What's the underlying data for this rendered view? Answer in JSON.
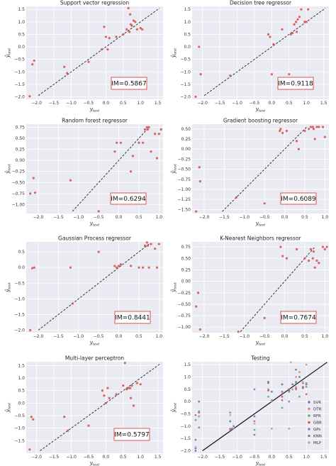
{
  "chart_data": [
    {
      "type": "scatter",
      "title": "Support vector regression",
      "xlabel": "y_test",
      "ylabel": "ŷ_test",
      "xlim": [
        -2.3,
        1.65
      ],
      "ylim": [
        -2.1,
        1.62
      ],
      "xticks": [
        -2.0,
        -1.5,
        -1.0,
        -0.5,
        0.0,
        0.5,
        1.0,
        1.5
      ],
      "xtick_labels": [
        "−2.0",
        "−1.5",
        "−1.0",
        "−0.5",
        "0.0",
        "0.5",
        "1.0",
        "1.5"
      ],
      "yticks": [
        -2.0,
        -1.5,
        -1.0,
        -0.5,
        0.0,
        0.5,
        1.0,
        1.5
      ],
      "ytick_labels": [
        "−2.0",
        "−1.5",
        "−1.0",
        "−0.5",
        "0.0",
        "0.5",
        "1.0",
        "1.5"
      ],
      "diagonal": [
        -1.95,
        1.55
      ],
      "annotation": "IM=0.5867",
      "grid": true,
      "points": {
        "x": [
          -2.2,
          -2.12,
          -2.07,
          -1.2,
          -1.12,
          -0.5,
          -0.12,
          -0.05,
          0.0,
          0.05,
          0.1,
          0.3,
          0.5,
          0.6,
          0.65,
          0.68,
          0.7,
          0.72,
          0.75,
          0.8,
          0.85,
          0.9,
          1.0,
          1.05
        ],
        "y": [
          -1.98,
          -0.7,
          -0.55,
          -0.8,
          -1.05,
          -0.6,
          -0.1,
          0.8,
          0.4,
          -0.1,
          0.35,
          0.4,
          0.5,
          0.7,
          1.55,
          0.6,
          1.3,
          0.9,
          0.85,
          1.05,
          1.0,
          0.7,
          0.75,
          0.7
        ]
      }
    },
    {
      "type": "scatter",
      "title": "Decision tree regressor",
      "xlabel": "y_test",
      "ylabel": "ŷ_test",
      "xlim": [
        -2.3,
        1.65
      ],
      "ylim": [
        -2.1,
        1.62
      ],
      "xticks": [
        -2.0,
        -1.5,
        -1.0,
        -0.5,
        0.0,
        0.5,
        1.0,
        1.5
      ],
      "xtick_labels": [
        "−2.0",
        "−1.5",
        "−1.0",
        "−0.5",
        "0.0",
        "0.5",
        "1.0",
        "1.5"
      ],
      "yticks": [
        -2.0,
        -1.5,
        -1.0,
        -0.5,
        0.0,
        0.5,
        1.0,
        1.5
      ],
      "ytick_labels": [
        "−2.0",
        "−1.5",
        "−1.0",
        "−0.5",
        "0.0",
        "0.5",
        "1.0",
        "1.5"
      ],
      "diagonal": [
        -1.95,
        1.55
      ],
      "annotation": "IM=0.9118",
      "grid": true,
      "points": {
        "x": [
          -2.2,
          -2.1,
          -2.05,
          -1.2,
          -0.1,
          -0.05,
          0.0,
          0.05,
          0.3,
          0.5,
          0.55,
          0.6,
          0.65,
          0.7,
          0.72,
          0.75,
          0.8,
          0.85,
          0.95,
          1.0,
          1.05
        ],
        "y": [
          -2.0,
          0.0,
          -1.1,
          -1.15,
          0.5,
          0.4,
          -1.1,
          0.1,
          0.7,
          -1.1,
          0.5,
          0.55,
          0.9,
          1.0,
          0.6,
          1.1,
          1.2,
          1.5,
          1.0,
          1.0,
          1.5
        ]
      }
    },
    {
      "type": "scatter",
      "title": "Random forest regressor",
      "xlabel": "y_test",
      "ylabel": "ŷ_test",
      "xlim": [
        -2.3,
        1.1
      ],
      "ylim": [
        -1.2,
        0.82
      ],
      "xticks": [
        -2.0,
        -1.5,
        -1.0,
        -0.5,
        0.0,
        0.5,
        1.0
      ],
      "xtick_labels": [
        "−2.0",
        "−1.5",
        "−1.0",
        "−0.5",
        "0.0",
        "0.5",
        "1.0"
      ],
      "yticks": [
        -1.0,
        -0.75,
        -0.5,
        -0.25,
        0.0,
        0.25,
        0.5,
        0.75
      ],
      "ytick_labels": [
        "−1.00",
        "−0.75",
        "−0.50",
        "−0.25",
        "0.00",
        "0.25",
        "0.50",
        "0.75"
      ],
      "diagonal": [
        -1.15,
        0.75
      ],
      "annotation": "IM=0.6294",
      "grid": true,
      "points": {
        "x": [
          -2.2,
          -2.12,
          -2.08,
          -1.2,
          -0.5,
          -0.1,
          -0.05,
          0.05,
          0.3,
          0.35,
          0.5,
          0.6,
          0.65,
          0.7,
          0.72,
          0.75,
          0.8,
          0.9,
          0.95,
          1.0,
          1.05
        ],
        "y": [
          -0.75,
          -0.4,
          -0.73,
          -0.45,
          -1.15,
          0.2,
          0.4,
          0.4,
          -0.25,
          0.1,
          0.4,
          0.4,
          0.7,
          0.75,
          0.7,
          0.75,
          0.2,
          0.6,
          0.05,
          0.6,
          0.7
        ]
      }
    },
    {
      "type": "scatter",
      "title": "Gradient boosting regressor",
      "xlabel": "y_test",
      "ylabel": "ŷ_test",
      "xlim": [
        -2.3,
        1.1
      ],
      "ylim": [
        -1.6,
        0.62
      ],
      "xticks": [
        -2.0,
        -1.5,
        -1.0,
        -0.5,
        0.0,
        0.5,
        1.0
      ],
      "xtick_labels": [
        "−2.0",
        "−1.5",
        "−1.0",
        "−0.5",
        "0.0",
        "0.5",
        "1.0"
      ],
      "yticks": [
        -1.5,
        -1.25,
        -1.0,
        -0.75,
        -0.5,
        -0.25,
        0.0,
        0.25,
        0.5
      ],
      "ytick_labels": [
        "−1.50",
        "−1.25",
        "−1.00",
        "−0.75",
        "−0.50",
        "−0.25",
        "0.00",
        "0.25",
        "0.50"
      ],
      "diagonal": [
        -1.55,
        0.55
      ],
      "annotation": "IM=0.6089",
      "grid": true,
      "points": {
        "x": [
          -2.2,
          -2.12,
          -2.1,
          -1.2,
          -0.5,
          -0.12,
          -0.1,
          -0.05,
          0.05,
          0.3,
          0.35,
          0.5,
          0.6,
          0.65,
          0.7,
          0.72,
          0.75,
          0.8,
          0.85,
          0.95,
          1.0
        ],
        "y": [
          -1.55,
          -0.45,
          -0.8,
          -1.2,
          -1.35,
          0.45,
          0.5,
          0.4,
          0.45,
          0.2,
          0.0,
          0.45,
          0.5,
          0.55,
          0.55,
          0.5,
          0.25,
          0.55,
          0.55,
          0.55,
          0.3
        ]
      }
    },
    {
      "type": "scatter",
      "title": "Gaussian Process regressor",
      "xlabel": "y_test",
      "ylabel": "ŷ_test",
      "xlim": [
        -2.3,
        1.1
      ],
      "ylim": [
        -2.08,
        0.82
      ],
      "xticks": [
        -2.0,
        -1.5,
        -1.0,
        -0.5,
        0.0,
        0.5,
        1.0
      ],
      "xtick_labels": [
        "−2.0",
        "−1.5",
        "−1.0",
        "−0.5",
        "0.0",
        "0.5",
        "1.0"
      ],
      "yticks": [
        -2.0,
        -1.5,
        -1.0,
        -0.5,
        0.0,
        0.5
      ],
      "ytick_labels": [
        "−2.0",
        "−1.5",
        "−1.0",
        "−0.5",
        "0.0",
        "0.5"
      ],
      "diagonal": [
        -2.0,
        0.75
      ],
      "annotation": "IM=0.8441",
      "grid": true,
      "points": {
        "x": [
          -2.2,
          -2.15,
          -2.1,
          -1.2,
          -1.15,
          -0.5,
          -0.1,
          -0.05,
          0.0,
          0.05,
          0.3,
          0.5,
          0.6,
          0.65,
          0.7,
          0.72,
          0.75,
          0.8,
          0.9,
          0.95,
          1.0
        ],
        "y": [
          -2.0,
          -0.02,
          0.0,
          0.0,
          -1.15,
          0.5,
          0.05,
          0.0,
          0.05,
          0.1,
          0.05,
          0.0,
          0.0,
          0.7,
          0.8,
          0.7,
          0.0,
          0.75,
          0.6,
          0.0,
          0.75
        ]
      }
    },
    {
      "type": "scatter",
      "title": "K-Nearest Neighbors regressor",
      "xlabel": "y_test",
      "ylabel": "ŷ_test",
      "xlim": [
        -2.3,
        1.1
      ],
      "ylim": [
        -1.12,
        0.86
      ],
      "xticks": [
        -2.0,
        -1.5,
        -1.0,
        -0.5,
        0.0,
        0.5,
        1.0
      ],
      "xtick_labels": [
        "−2.0",
        "−1.5",
        "−1.0",
        "−0.5",
        "0.0",
        "0.5",
        "1.0"
      ],
      "yticks": [
        -1.0,
        -0.75,
        -0.5,
        -0.25,
        0.0,
        0.25,
        0.5,
        0.75
      ],
      "ytick_labels": [
        "−1.00",
        "−0.75",
        "−0.50",
        "−0.25",
        "0.00",
        "0.25",
        "0.50",
        "0.75"
      ],
      "diagonal": [
        -1.1,
        0.75
      ],
      "annotation": "IM=0.7674",
      "grid": true,
      "points": {
        "x": [
          -2.2,
          -2.15,
          -2.1,
          -1.15,
          -0.5,
          -0.1,
          -0.05,
          0.05,
          0.3,
          0.5,
          0.6,
          0.65,
          0.7,
          0.72,
          0.75,
          0.8,
          0.85,
          0.95,
          1.0,
          1.05
        ],
        "y": [
          -0.55,
          -0.25,
          -1.05,
          -1.1,
          -0.8,
          0.75,
          0.55,
          0.5,
          0.7,
          0.5,
          0.45,
          0.7,
          0.5,
          0.65,
          0.3,
          0.45,
          0.4,
          0.75,
          0.7,
          0.75
        ]
      }
    },
    {
      "type": "scatter",
      "title": "Multi-layer perceptron",
      "xlabel": "y_test",
      "ylabel": "ŷ_test",
      "xlim": [
        -2.3,
        1.65
      ],
      "ylim": [
        -2.0,
        1.65
      ],
      "xticks": [
        -2.0,
        -1.5,
        -1.0,
        -0.5,
        0.0,
        0.5,
        1.0,
        1.5
      ],
      "xtick_labels": [
        "−2.0",
        "−1.5",
        "−1.0",
        "−0.5",
        "0.0",
        "0.5",
        "1.0",
        "1.5"
      ],
      "yticks": [
        -1.5,
        -1.0,
        -0.5,
        0.0,
        0.5,
        1.0,
        1.5
      ],
      "ytick_labels": [
        "−1.5",
        "−1.0",
        "−0.5",
        "0.0",
        "0.5",
        "1.0",
        "1.5"
      ],
      "diagonal": [
        -1.9,
        1.55
      ],
      "annotation": "IM=0.5797",
      "grid": true,
      "points": {
        "x": [
          -2.2,
          -2.15,
          -2.1,
          -1.2,
          -1.1,
          -0.5,
          -0.1,
          -0.05,
          0.0,
          0.05,
          0.1,
          0.3,
          0.5,
          0.55,
          0.6,
          0.65,
          0.7,
          0.72,
          0.75,
          0.8,
          0.9,
          1.0
        ],
        "y": [
          -1.85,
          -0.55,
          -0.65,
          -0.55,
          -1.1,
          -0.9,
          0.5,
          0.3,
          0.0,
          0.6,
          0.2,
          0.35,
          0.7,
          1.6,
          0.55,
          0.6,
          0.6,
          0.2,
          0.7,
          -0.1,
          0.8,
          0.75
        ]
      }
    },
    {
      "type": "scatter",
      "title": "Testing",
      "xlabel": "y_test",
      "ylabel": "ŷ_test",
      "xlim": [
        -2.3,
        1.65
      ],
      "ylim": [
        -2.1,
        1.62
      ],
      "xticks": [
        -2.0,
        -1.5,
        -1.0,
        -0.5,
        0.0,
        0.5,
        1.0,
        1.5
      ],
      "xtick_labels": [
        "−2.0",
        "−1.5",
        "−1.0",
        "−0.5",
        "0.0",
        "0.5",
        "1.0",
        "1.5"
      ],
      "yticks": [
        -2.0,
        -1.5,
        -1.0,
        -0.5,
        0.0,
        0.5,
        1.0,
        1.5
      ],
      "ytick_labels": [
        "−2.0",
        "−1.5",
        "−1.0",
        "−0.5",
        "0.0",
        "0.5",
        "1.0",
        "1.5"
      ],
      "diagonal": [
        -2.0,
        1.6
      ],
      "diagonal_style": "solid",
      "grid": true,
      "legend_position": "lower-right",
      "series": [
        {
          "name": "SVR",
          "color": "#4c72b0",
          "x": [
            -2.2,
            -2.1,
            -1.2,
            -1.1,
            -0.5,
            -0.1,
            0.0,
            0.3,
            0.5,
            0.6,
            0.7,
            0.8,
            1.0
          ],
          "y": [
            -1.9,
            -0.6,
            -0.8,
            -1.0,
            -0.6,
            0.8,
            0.4,
            0.4,
            0.5,
            0.7,
            1.3,
            1.0,
            0.7
          ]
        },
        {
          "name": "DTR",
          "color": "#dd8452",
          "x": [
            -2.2,
            -2.1,
            -1.2,
            -0.1,
            0.0,
            0.3,
            0.5,
            0.6,
            0.7,
            0.8,
            1.0
          ],
          "y": [
            -2.0,
            0.0,
            -1.1,
            0.5,
            -1.1,
            0.7,
            -1.1,
            0.5,
            1.0,
            1.2,
            1.5
          ]
        },
        {
          "name": "RFR",
          "color": "#55a868",
          "x": [
            -2.2,
            -2.1,
            -1.2,
            -0.5,
            -0.1,
            0.3,
            0.5,
            0.7,
            0.8,
            1.0
          ],
          "y": [
            -0.75,
            -0.4,
            -0.45,
            -1.15,
            0.2,
            -0.25,
            0.4,
            0.75,
            0.2,
            0.6
          ]
        },
        {
          "name": "GBR",
          "color": "#c44e52",
          "x": [
            -2.2,
            -2.1,
            -1.2,
            -0.5,
            -0.1,
            0.3,
            0.5,
            0.7,
            0.9,
            1.0
          ],
          "y": [
            -1.55,
            -0.45,
            -1.2,
            -1.35,
            0.45,
            0.2,
            0.45,
            0.55,
            0.55,
            0.3
          ]
        },
        {
          "name": "GPs",
          "color": "#8172b3",
          "x": [
            -2.2,
            -2.1,
            -1.2,
            -0.5,
            0.0,
            0.3,
            0.5,
            0.7,
            0.9,
            1.0
          ],
          "y": [
            -2.0,
            0.0,
            -1.15,
            0.5,
            0.05,
            0.05,
            0.0,
            0.8,
            0.6,
            0.75
          ]
        },
        {
          "name": "KNN",
          "color": "#937860",
          "x": [
            -2.2,
            -2.1,
            -1.15,
            -0.5,
            -0.1,
            0.3,
            0.5,
            0.7,
            0.9,
            1.0
          ],
          "y": [
            -0.55,
            -1.05,
            -1.1,
            -0.8,
            0.75,
            0.7,
            0.5,
            0.5,
            0.75,
            0.7
          ]
        },
        {
          "name": "MLP",
          "color": "#da8bc3",
          "x": [
            -2.2,
            -2.1,
            -1.2,
            -1.1,
            -0.5,
            0.0,
            0.3,
            0.55,
            0.7,
            0.9,
            1.0
          ],
          "y": [
            -1.85,
            -0.6,
            -0.55,
            -1.1,
            -0.9,
            0.0,
            0.35,
            1.6,
            0.6,
            0.8,
            0.75
          ]
        }
      ]
    }
  ]
}
